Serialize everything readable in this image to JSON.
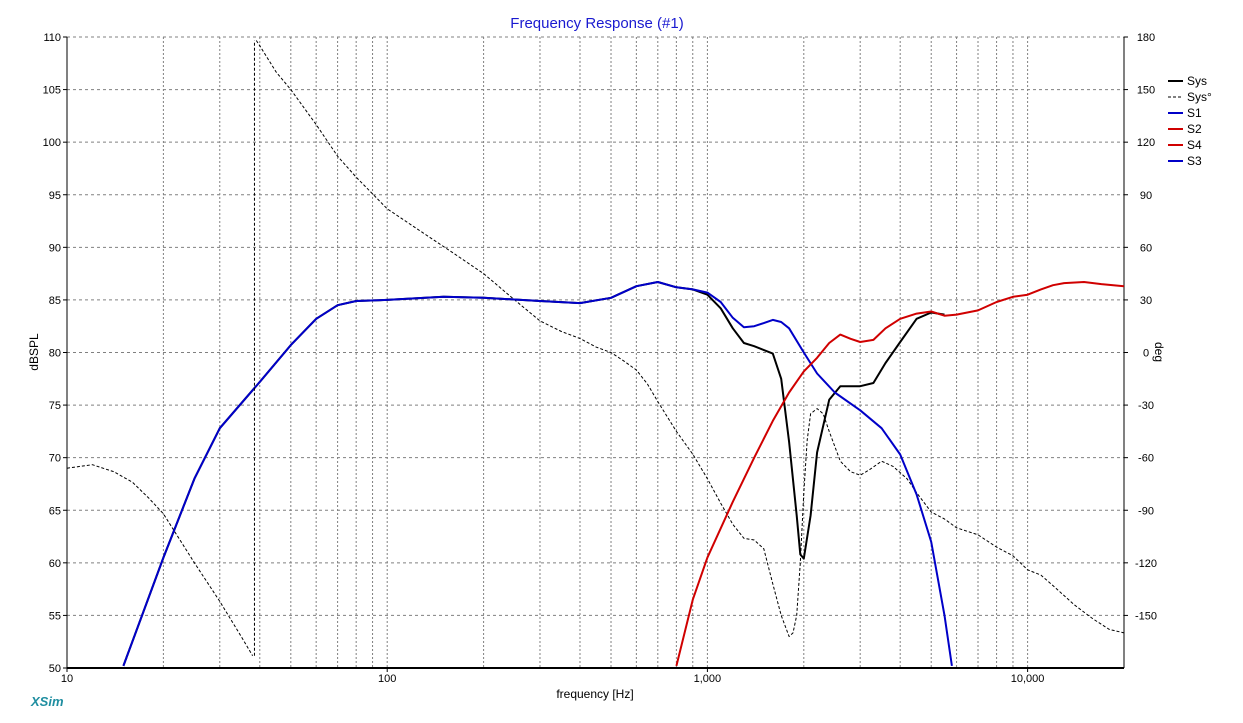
{
  "app": {
    "brand": "XSim"
  },
  "chart_data": {
    "type": "line",
    "title": "Frequency Response (#1)",
    "xlabel": "frequency [Hz]",
    "ylabel": "dBSPL",
    "y2label": "deg",
    "xscale": "log",
    "xlim": [
      10,
      20000
    ],
    "ylim": [
      50,
      110
    ],
    "y2lim": [
      -180,
      180
    ],
    "grid": true,
    "legend_position": "right",
    "x_ticks": [
      {
        "value": 10,
        "label": "10"
      },
      {
        "value": 100,
        "label": "100"
      },
      {
        "value": 1000,
        "label": "1,000"
      },
      {
        "value": 10000,
        "label": "10,000"
      }
    ],
    "y_ticks": [
      {
        "value": 50,
        "label": "50"
      },
      {
        "value": 55,
        "label": "55"
      },
      {
        "value": 60,
        "label": "60"
      },
      {
        "value": 65,
        "label": "65"
      },
      {
        "value": 70,
        "label": "70"
      },
      {
        "value": 75,
        "label": "75"
      },
      {
        "value": 80,
        "label": "80"
      },
      {
        "value": 85,
        "label": "85"
      },
      {
        "value": 90,
        "label": "90"
      },
      {
        "value": 95,
        "label": "95"
      },
      {
        "value": 100,
        "label": "100"
      },
      {
        "value": 105,
        "label": "105"
      },
      {
        "value": 110,
        "label": "110"
      }
    ],
    "y2_ticks": [
      {
        "value": 180,
        "label": "180"
      },
      {
        "value": 150,
        "label": "150"
      },
      {
        "value": 120,
        "label": "120"
      },
      {
        "value": 90,
        "label": "90"
      },
      {
        "value": 60,
        "label": "60"
      },
      {
        "value": 30,
        "label": "30"
      },
      {
        "value": 0,
        "label": "0"
      },
      {
        "value": -30,
        "label": "-30"
      },
      {
        "value": -60,
        "label": "-60"
      },
      {
        "value": -90,
        "label": "-90"
      },
      {
        "value": -120,
        "label": "-120"
      },
      {
        "value": -150,
        "label": "-150"
      }
    ],
    "series": [
      {
        "name": "Sys",
        "color": "#000000",
        "dash": "solid",
        "width": 2,
        "axis": "left",
        "points": [
          [
            15,
            50.2
          ],
          [
            20,
            60.5
          ],
          [
            25,
            68.0
          ],
          [
            30,
            72.8
          ],
          [
            40,
            77.2
          ],
          [
            50,
            80.7
          ],
          [
            60,
            83.2
          ],
          [
            70,
            84.5
          ],
          [
            80,
            84.9
          ],
          [
            100,
            85.0
          ],
          [
            150,
            85.3
          ],
          [
            200,
            85.2
          ],
          [
            300,
            84.9
          ],
          [
            400,
            84.7
          ],
          [
            500,
            85.2
          ],
          [
            600,
            86.3
          ],
          [
            700,
            86.7
          ],
          [
            800,
            86.2
          ],
          [
            900,
            86.0
          ],
          [
            1000,
            85.5
          ],
          [
            1100,
            84.2
          ],
          [
            1200,
            82.3
          ],
          [
            1300,
            80.9
          ],
          [
            1400,
            80.6
          ],
          [
            1600,
            79.9
          ],
          [
            1700,
            77.5
          ],
          [
            1800,
            71.5
          ],
          [
            1900,
            64.5
          ],
          [
            1950,
            60.8
          ],
          [
            2000,
            60.4
          ],
          [
            2100,
            64.5
          ],
          [
            2200,
            70.5
          ],
          [
            2400,
            75.5
          ],
          [
            2600,
            76.8
          ],
          [
            2800,
            76.8
          ],
          [
            3000,
            76.8
          ],
          [
            3300,
            77.1
          ],
          [
            3600,
            79.0
          ],
          [
            4000,
            81.0
          ],
          [
            4500,
            83.2
          ],
          [
            5000,
            83.8
          ],
          [
            5500,
            83.6
          ]
        ]
      },
      {
        "name": "Sys°",
        "color": "#000000",
        "dash": "dashed",
        "width": 1,
        "axis": "right",
        "points": [
          [
            10,
            -66
          ],
          [
            12,
            -64
          ],
          [
            14,
            -68
          ],
          [
            16,
            -74
          ],
          [
            18,
            -83
          ],
          [
            20,
            -92
          ],
          [
            25,
            -120
          ],
          [
            30,
            -142
          ],
          [
            35,
            -162
          ],
          [
            38,
            -173
          ],
          [
            39,
            178
          ],
          [
            40,
            175
          ],
          [
            45,
            160
          ],
          [
            50,
            150
          ],
          [
            60,
            130
          ],
          [
            70,
            112
          ],
          [
            80,
            100
          ],
          [
            100,
            82
          ],
          [
            130,
            68
          ],
          [
            160,
            57
          ],
          [
            200,
            45
          ],
          [
            250,
            30
          ],
          [
            300,
            18
          ],
          [
            350,
            12
          ],
          [
            400,
            8
          ],
          [
            450,
            3
          ],
          [
            500,
            0
          ],
          [
            550,
            -5
          ],
          [
            600,
            -10
          ],
          [
            650,
            -18
          ],
          [
            700,
            -28
          ],
          [
            800,
            -45
          ],
          [
            900,
            -58
          ],
          [
            1000,
            -72
          ],
          [
            1100,
            -86
          ],
          [
            1200,
            -98
          ],
          [
            1300,
            -106
          ],
          [
            1400,
            -107
          ],
          [
            1500,
            -112
          ],
          [
            1600,
            -132
          ],
          [
            1700,
            -150
          ],
          [
            1800,
            -162
          ],
          [
            1850,
            -160
          ],
          [
            1900,
            -150
          ],
          [
            1950,
            -120
          ],
          [
            2000,
            -80
          ],
          [
            2050,
            -50
          ],
          [
            2100,
            -35
          ],
          [
            2200,
            -32
          ],
          [
            2300,
            -35
          ],
          [
            2400,
            -45
          ],
          [
            2600,
            -62
          ],
          [
            2800,
            -68
          ],
          [
            3000,
            -70
          ],
          [
            3200,
            -67
          ],
          [
            3500,
            -62
          ],
          [
            3800,
            -65
          ],
          [
            4200,
            -72
          ],
          [
            4500,
            -80
          ],
          [
            5000,
            -91
          ],
          [
            5500,
            -95
          ],
          [
            6000,
            -100
          ],
          [
            7000,
            -104
          ],
          [
            8000,
            -111
          ],
          [
            9000,
            -116
          ],
          [
            10000,
            -124
          ],
          [
            11000,
            -127
          ],
          [
            12000,
            -133
          ],
          [
            14000,
            -144
          ],
          [
            16000,
            -152
          ],
          [
            18000,
            -158
          ],
          [
            20000,
            -160
          ]
        ]
      },
      {
        "name": "S1",
        "color": "#0000c8",
        "dash": "solid",
        "width": 2,
        "axis": "left",
        "points": [
          [
            15,
            50.2
          ],
          [
            20,
            60.5
          ],
          [
            25,
            68.0
          ],
          [
            30,
            72.8
          ],
          [
            40,
            77.2
          ],
          [
            50,
            80.7
          ],
          [
            60,
            83.2
          ],
          [
            70,
            84.5
          ],
          [
            80,
            84.9
          ],
          [
            100,
            85.0
          ],
          [
            150,
            85.3
          ],
          [
            200,
            85.2
          ],
          [
            300,
            84.9
          ],
          [
            400,
            84.7
          ],
          [
            500,
            85.2
          ],
          [
            600,
            86.3
          ],
          [
            700,
            86.7
          ],
          [
            800,
            86.2
          ],
          [
            900,
            86.0
          ],
          [
            1000,
            85.7
          ],
          [
            1100,
            84.8
          ],
          [
            1200,
            83.3
          ],
          [
            1300,
            82.4
          ],
          [
            1400,
            82.5
          ],
          [
            1500,
            82.8
          ],
          [
            1600,
            83.1
          ],
          [
            1700,
            82.9
          ],
          [
            1800,
            82.3
          ],
          [
            2000,
            80.0
          ],
          [
            2200,
            78.0
          ],
          [
            2500,
            76.2
          ],
          [
            3000,
            74.5
          ],
          [
            3500,
            72.8
          ],
          [
            4000,
            70.3
          ],
          [
            4500,
            66.5
          ],
          [
            5000,
            62.0
          ],
          [
            5500,
            55.0
          ],
          [
            5800,
            50.2
          ]
        ]
      },
      {
        "name": "S2",
        "color": "#d00000",
        "dash": "solid",
        "width": 2,
        "axis": "left",
        "points": [
          [
            800,
            50.2
          ],
          [
            900,
            56.5
          ],
          [
            1000,
            60.5
          ],
          [
            1200,
            65.8
          ],
          [
            1400,
            70.0
          ],
          [
            1600,
            73.5
          ],
          [
            1800,
            76.2
          ],
          [
            2000,
            78.2
          ],
          [
            2200,
            79.5
          ],
          [
            2400,
            80.9
          ],
          [
            2600,
            81.7
          ],
          [
            2800,
            81.3
          ],
          [
            3000,
            81.0
          ],
          [
            3300,
            81.2
          ],
          [
            3600,
            82.3
          ],
          [
            4000,
            83.2
          ],
          [
            4500,
            83.7
          ],
          [
            5000,
            83.9
          ],
          [
            5500,
            83.5
          ],
          [
            6000,
            83.6
          ],
          [
            7000,
            84.0
          ],
          [
            8000,
            84.8
          ],
          [
            9000,
            85.3
          ],
          [
            10000,
            85.5
          ],
          [
            11000,
            86.0
          ],
          [
            12000,
            86.4
          ],
          [
            13000,
            86.6
          ],
          [
            15000,
            86.7
          ],
          [
            17000,
            86.5
          ],
          [
            20000,
            86.3
          ]
        ]
      },
      {
        "name": "S4",
        "color": "#d00000",
        "dash": "solid",
        "width": 2,
        "axis": "left",
        "points": []
      },
      {
        "name": "S3",
        "color": "#0000c8",
        "dash": "solid",
        "width": 2,
        "axis": "left",
        "points": []
      }
    ]
  }
}
